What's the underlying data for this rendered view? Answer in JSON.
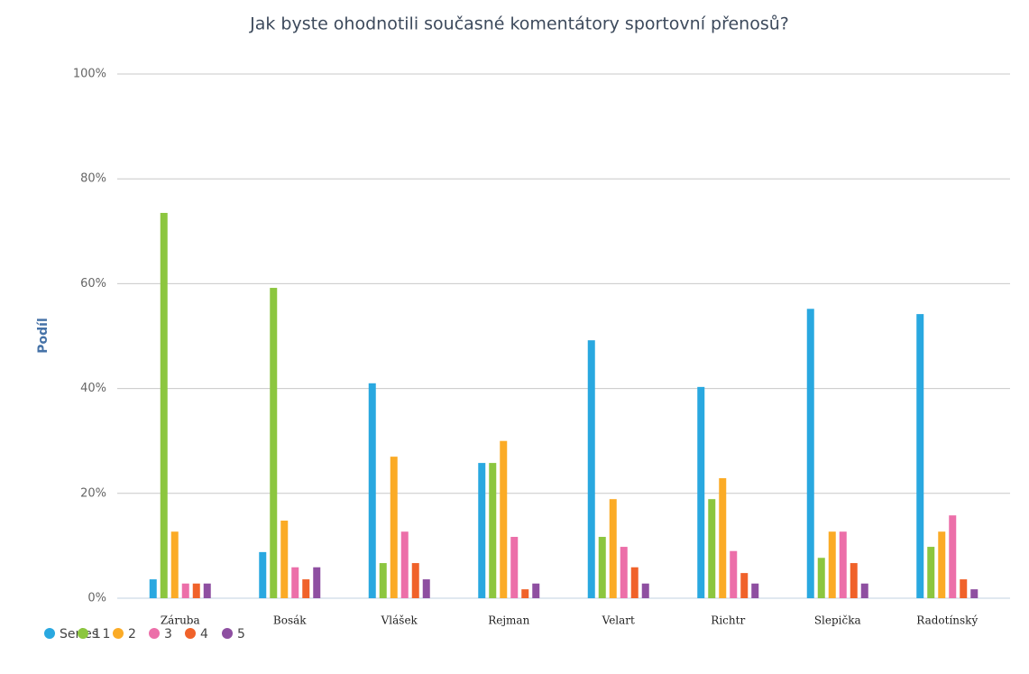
{
  "chart_data": {
    "type": "bar",
    "title": "Jak byste ohodnotili současné komentátory sportovní přenosů?",
    "y_label": "Podíl",
    "categories": [
      "Záruba",
      "Bosák",
      "Vlášek",
      "Rejman",
      "Velart",
      "Richtr",
      "Slepička",
      "Radotínský"
    ],
    "series": [
      {
        "name": "Series 1",
        "color": "#29a8e0",
        "values": [
          3.6,
          8.8,
          41,
          25.8,
          49.2,
          40.3,
          55.2,
          54.2
        ]
      },
      {
        "name": "1",
        "color": "#8cc63f",
        "values": [
          73.5,
          59.2,
          6.7,
          25.8,
          11.7,
          18.9,
          7.7,
          9.8
        ]
      },
      {
        "name": "2",
        "color": "#fbab26",
        "values": [
          12.7,
          14.8,
          27,
          30,
          18.9,
          22.9,
          12.7,
          12.7
        ]
      },
      {
        "name": "3",
        "color": "#ec6fa9",
        "values": [
          2.8,
          5.9,
          12.7,
          11.7,
          9.8,
          9,
          12.7,
          15.8
        ]
      },
      {
        "name": "4",
        "color": "#f0622a",
        "values": [
          2.8,
          3.6,
          6.7,
          1.7,
          5.9,
          4.8,
          6.7,
          3.6
        ]
      },
      {
        "name": "5",
        "color": "#8e4fa1",
        "values": [
          2.8,
          5.9,
          3.6,
          2.8,
          2.8,
          2.8,
          2.8,
          1.7
        ]
      }
    ],
    "ylim": [
      0,
      100
    ],
    "yticks": [
      {
        "value": 0,
        "label": "0%"
      },
      {
        "value": 20,
        "label": "20%"
      },
      {
        "value": 40,
        "label": "40%"
      },
      {
        "value": 60,
        "label": "60%"
      },
      {
        "value": 80,
        "label": "80%"
      },
      {
        "value": 100,
        "label": "100%"
      }
    ],
    "grid": true
  }
}
